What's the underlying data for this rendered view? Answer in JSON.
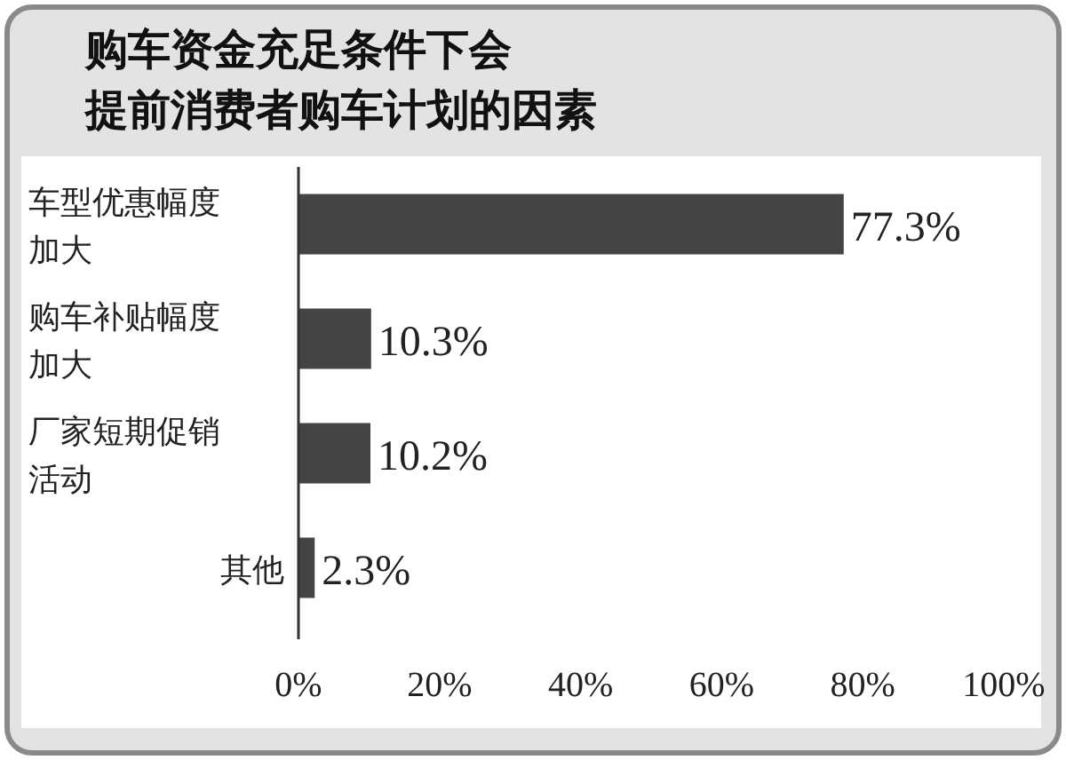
{
  "chart_data": {
    "type": "bar",
    "orientation": "horizontal",
    "title": "购车资金充足条件下会提前消费者购车计划的因素",
    "categories": [
      "车型优惠幅度加大",
      "购车补贴幅度加大",
      "厂家短期促销活动",
      "其他"
    ],
    "values": [
      77.3,
      10.3,
      10.2,
      2.3
    ],
    "value_labels": [
      "77.3%",
      "10.3%",
      "10.2%",
      "2.3%"
    ],
    "color": "#444444",
    "xlim": [
      0,
      100
    ],
    "xticks": [
      {
        "value": 0,
        "label": "0%"
      },
      {
        "value": 20,
        "label": "20%"
      },
      {
        "value": 40,
        "label": "40%"
      },
      {
        "value": 60,
        "label": "60%"
      },
      {
        "value": 80,
        "label": "80%"
      },
      {
        "value": 100,
        "label": "100%"
      }
    ],
    "grid": false
  }
}
